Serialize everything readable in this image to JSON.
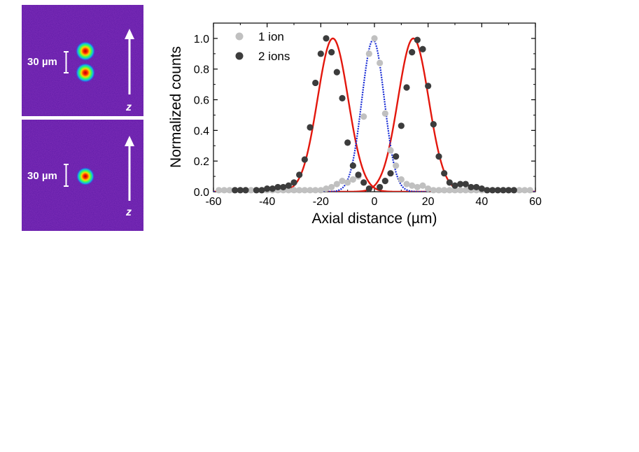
{
  "colors": {
    "panel_bg": "#5e1aa6",
    "panel_text": "#ffffff",
    "one_ion": "#c0c0c0",
    "two_ions": "#3c3c3c",
    "two_ion_fit": "#e3170d",
    "one_ion_fit": "#1428d4"
  },
  "images": {
    "top": {
      "scale_label": "30 µm",
      "axis_label": "z",
      "ion_count": 2
    },
    "bottom": {
      "scale_label": "30 µm",
      "axis_label": "z",
      "ion_count": 1
    }
  },
  "chart_data": {
    "type": "scatter",
    "title": "",
    "xlabel": "Axial distance (µm)",
    "ylabel": "Normalized counts",
    "xlim": [
      -60,
      60
    ],
    "ylim": [
      0,
      1.1
    ],
    "x_ticks": [
      -60,
      -40,
      -20,
      0,
      20,
      40,
      60
    ],
    "x_tick_labels": [
      "-60",
      "-40",
      "-20",
      "0",
      "20",
      "40",
      "60"
    ],
    "y_ticks": [
      0,
      0.2,
      0.4,
      0.6,
      0.8,
      1.0
    ],
    "y_tick_labels": [
      "0.0",
      "0.2",
      "0.4",
      "0.6",
      "0.8",
      "1.0"
    ],
    "grid": false,
    "legend_position": "top-left",
    "series": [
      {
        "name": "1 ion",
        "kind": "points",
        "x": [
          -58,
          -56,
          -54,
          -52,
          -50,
          -48,
          -46,
          -44,
          -42,
          -40,
          -38,
          -36,
          -34,
          -32,
          -30,
          -28,
          -26,
          -24,
          -22,
          -20,
          -18,
          -16,
          -14,
          -12,
          -10,
          -8,
          -6,
          -4,
          -2,
          0,
          2,
          4,
          6,
          8,
          10,
          12,
          14,
          16,
          18,
          20,
          22,
          24,
          26,
          28,
          30,
          32,
          34,
          36,
          38,
          40,
          42,
          44,
          46,
          48,
          50,
          52,
          54,
          56,
          58
        ],
        "y": [
          0.01,
          0.01,
          0.01,
          0.01,
          0.01,
          0.01,
          0.01,
          0.01,
          0.01,
          0.01,
          0.01,
          0.01,
          0.01,
          0.01,
          0.01,
          0.01,
          0.01,
          0.01,
          0.01,
          0.01,
          0.02,
          0.03,
          0.05,
          0.07,
          0.06,
          0.08,
          0.1,
          0.49,
          0.9,
          1.0,
          0.84,
          0.51,
          0.27,
          0.17,
          0.08,
          0.05,
          0.04,
          0.03,
          0.04,
          0.02,
          0.01,
          0.01,
          0.01,
          0.01,
          0.01,
          0.01,
          0.01,
          0.01,
          0.01,
          0.01,
          0.01,
          0.01,
          0.01,
          0.01,
          0.01,
          0.01,
          0.01,
          0.01,
          0.01
        ]
      },
      {
        "name": "2 ions",
        "kind": "points",
        "x": [
          -52,
          -50,
          -48,
          -44,
          -42,
          -40,
          -38,
          -36,
          -34,
          -32,
          -30,
          -28,
          -26,
          -24,
          -22,
          -20,
          -18,
          -16,
          -14,
          -12,
          -10,
          -8,
          -6,
          -4,
          -2,
          2,
          4,
          6,
          8,
          10,
          12,
          14,
          16,
          18,
          20,
          22,
          24,
          26,
          28,
          30,
          32,
          34,
          36,
          38,
          40,
          42,
          44,
          46,
          48,
          50,
          52
        ],
        "y": [
          0.01,
          0.01,
          0.01,
          0.01,
          0.01,
          0.02,
          0.02,
          0.03,
          0.03,
          0.04,
          0.06,
          0.11,
          0.21,
          0.42,
          0.71,
          0.9,
          1.0,
          0.91,
          0.78,
          0.61,
          0.32,
          0.17,
          0.11,
          0.06,
          0.02,
          0.03,
          0.07,
          0.12,
          0.23,
          0.43,
          0.68,
          0.91,
          0.99,
          0.93,
          0.69,
          0.44,
          0.23,
          0.12,
          0.06,
          0.04,
          0.05,
          0.05,
          0.03,
          0.03,
          0.02,
          0.01,
          0.01,
          0.01,
          0.01,
          0.01,
          0.01
        ]
      },
      {
        "name": "",
        "kind": "fit",
        "style": "solid",
        "peaks": [
          {
            "center": -15.5,
            "sigma": 5.7,
            "amplitude": 1.0
          },
          {
            "center": 14.5,
            "sigma": 5.7,
            "amplitude": 1.0
          }
        ]
      },
      {
        "name": "",
        "kind": "fit",
        "style": "dotted",
        "peaks": [
          {
            "center": -0.5,
            "sigma": 4.2,
            "amplitude": 0.99
          }
        ]
      }
    ]
  }
}
